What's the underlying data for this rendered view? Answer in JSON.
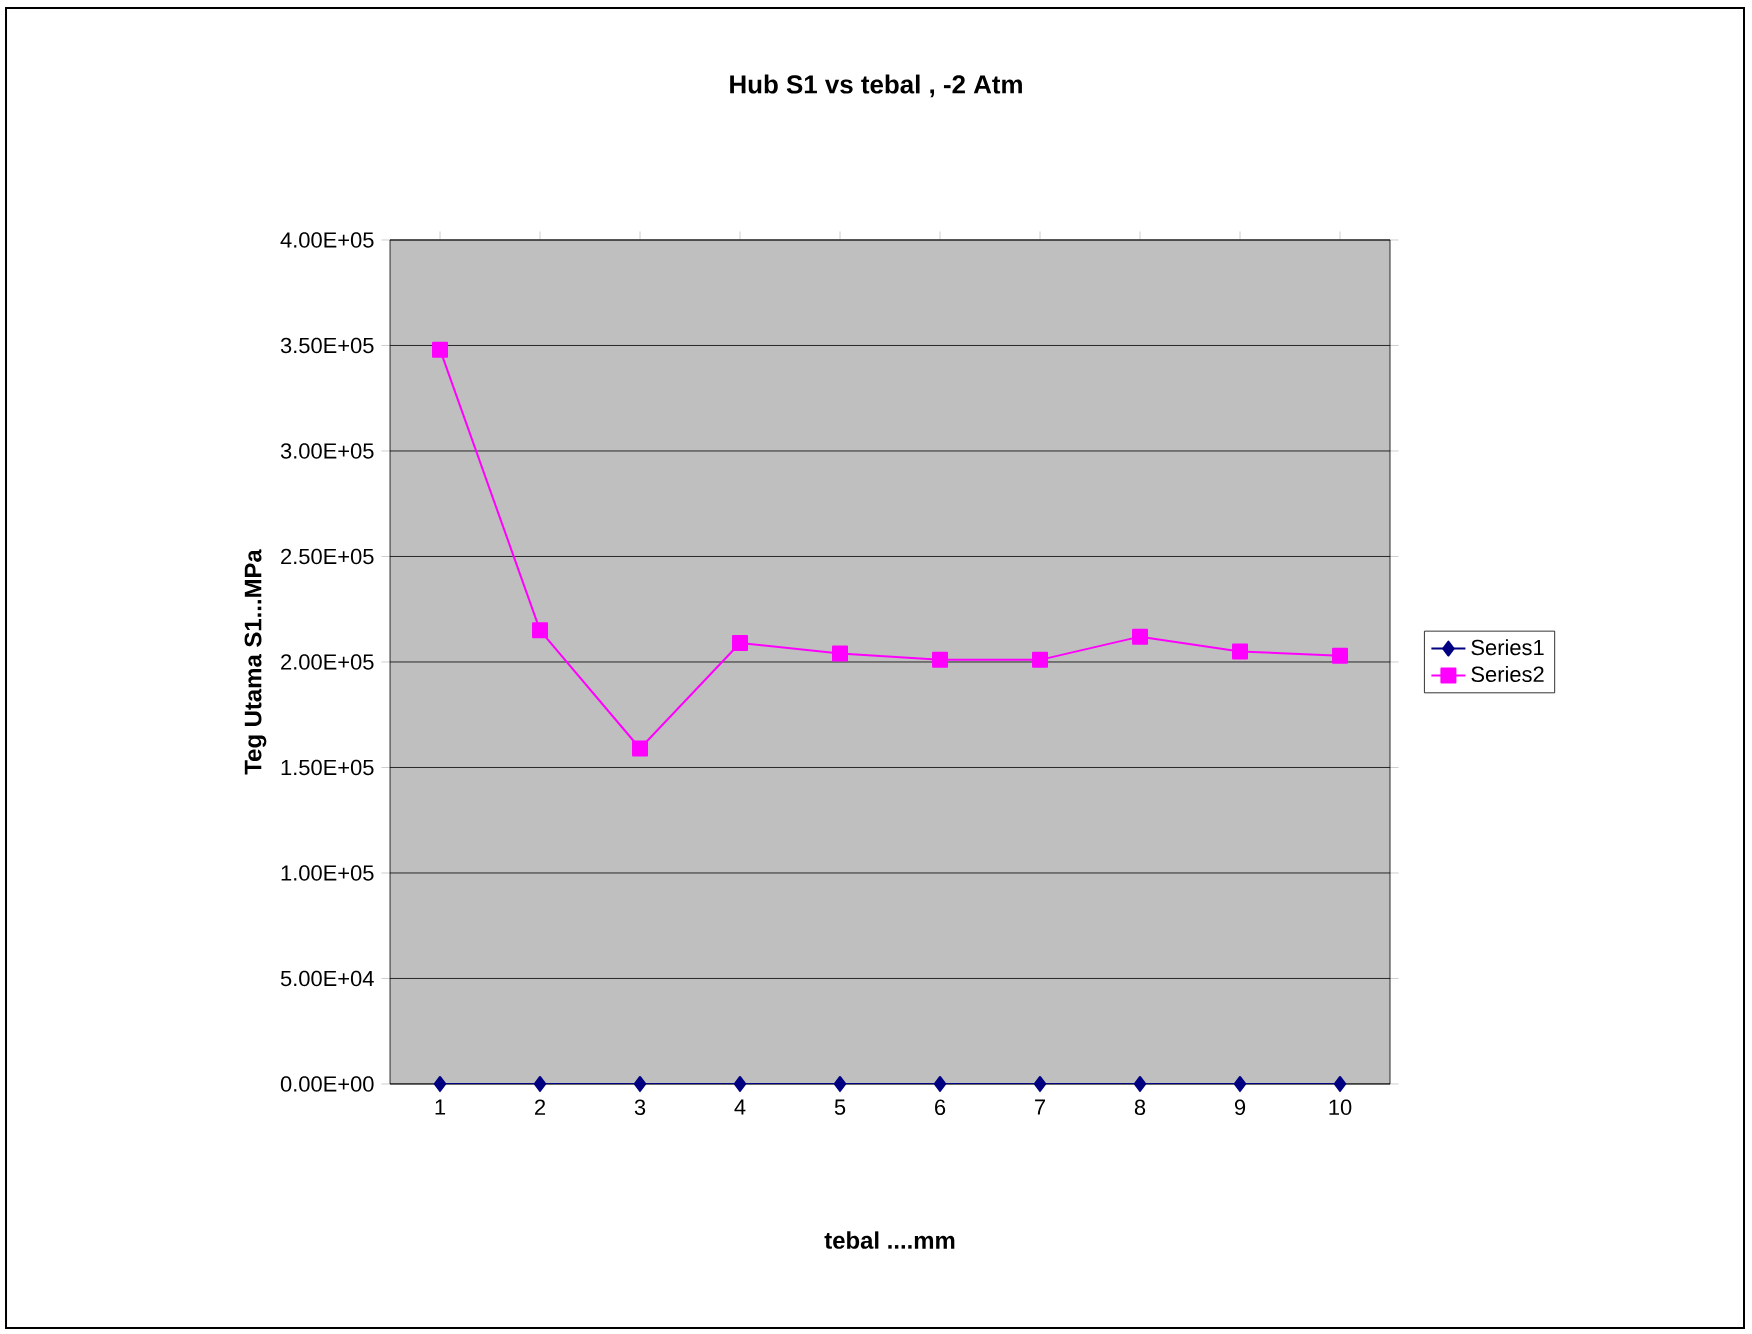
{
  "chart_data": {
    "type": "line",
    "title": "Hub  S1 vs tebal  ,  -2 Atm",
    "xlabel": "tebal ....mm",
    "ylabel": "Teg Utama S1...MPa",
    "categories": [
      "1",
      "2",
      "3",
      "4",
      "5",
      "6",
      "7",
      "8",
      "9",
      "10"
    ],
    "series": [
      {
        "name": "Series1",
        "color": "#000080",
        "marker": "diamond",
        "values": [
          0,
          0,
          0,
          0,
          0,
          0,
          0,
          0,
          0,
          0
        ]
      },
      {
        "name": "Series2",
        "color": "#ff00ff",
        "marker": "square",
        "values": [
          348000,
          215000,
          159000,
          209000,
          204000,
          201000,
          201000,
          212000,
          205000,
          203000
        ]
      }
    ],
    "ylim": [
      0,
      400000
    ],
    "yticks": [
      {
        "value": 0,
        "label": "0.00E+00"
      },
      {
        "value": 50000,
        "label": "5.00E+04"
      },
      {
        "value": 100000,
        "label": "1.00E+05"
      },
      {
        "value": 150000,
        "label": "1.50E+05"
      },
      {
        "value": 200000,
        "label": "2.00E+05"
      },
      {
        "value": 250000,
        "label": "2.50E+05"
      },
      {
        "value": 300000,
        "label": "3.00E+05"
      },
      {
        "value": 350000,
        "label": "3.50E+05"
      },
      {
        "value": 400000,
        "label": "4.00E+05"
      }
    ],
    "grid": "y",
    "legend": "right"
  }
}
